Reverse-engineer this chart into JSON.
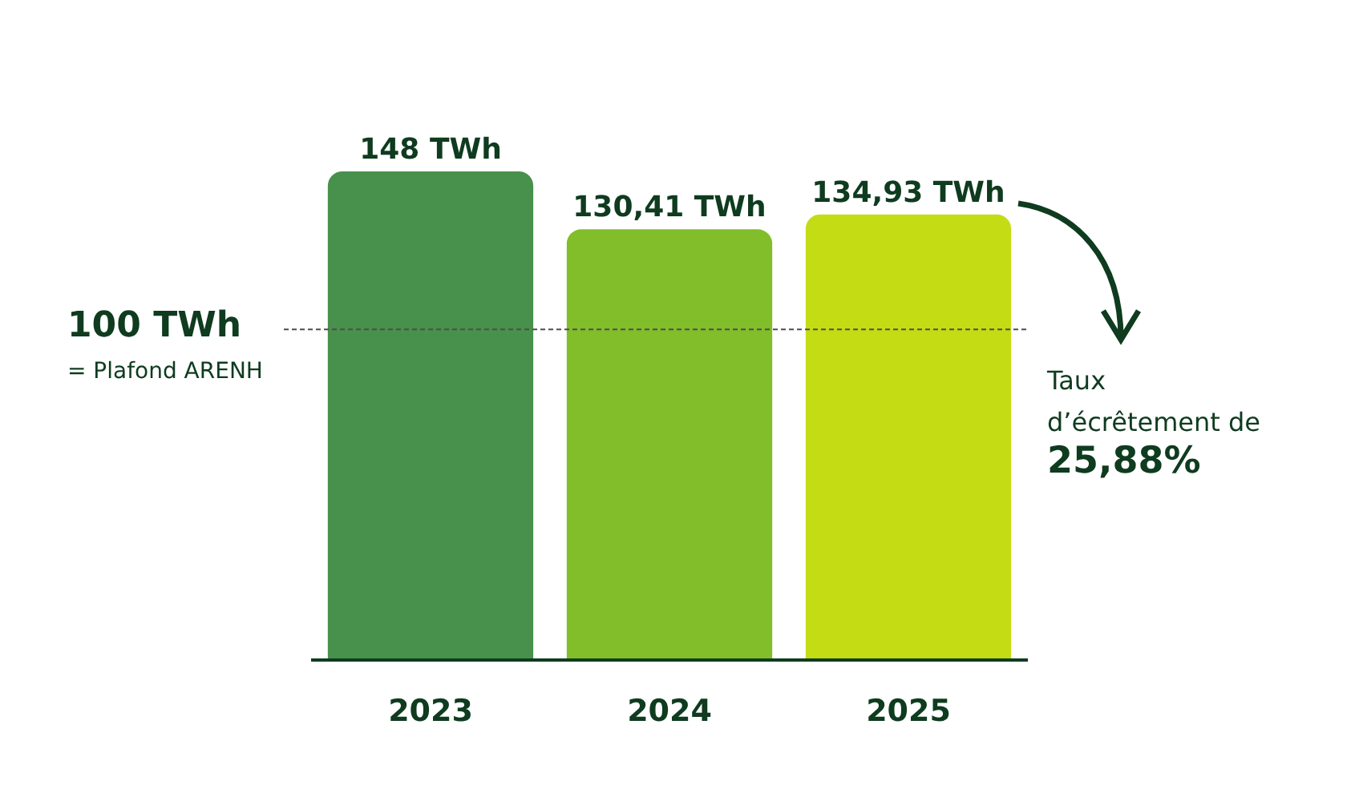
{
  "chart_data": {
    "type": "bar",
    "categories": [
      "2023",
      "2024",
      "2025"
    ],
    "values": [
      148,
      130.41,
      134.93
    ],
    "colors": [
      "#48914c",
      "#82bd2a",
      "#c4dc14"
    ],
    "value_labels": [
      "148 TWh",
      "130,41 TWh",
      "134,93 TWh"
    ],
    "tick_labels": "x",
    "ref_lines": [
      {
        "axis": "y",
        "value": 100,
        "label": "100 TWh\n= Plafond ARENH",
        "color": "#4d4d4d",
        "line_style": "dashed"
      }
    ],
    "annotations": [
      "Taux\nd’écrêtement de\n25,88%"
    ]
  }
}
